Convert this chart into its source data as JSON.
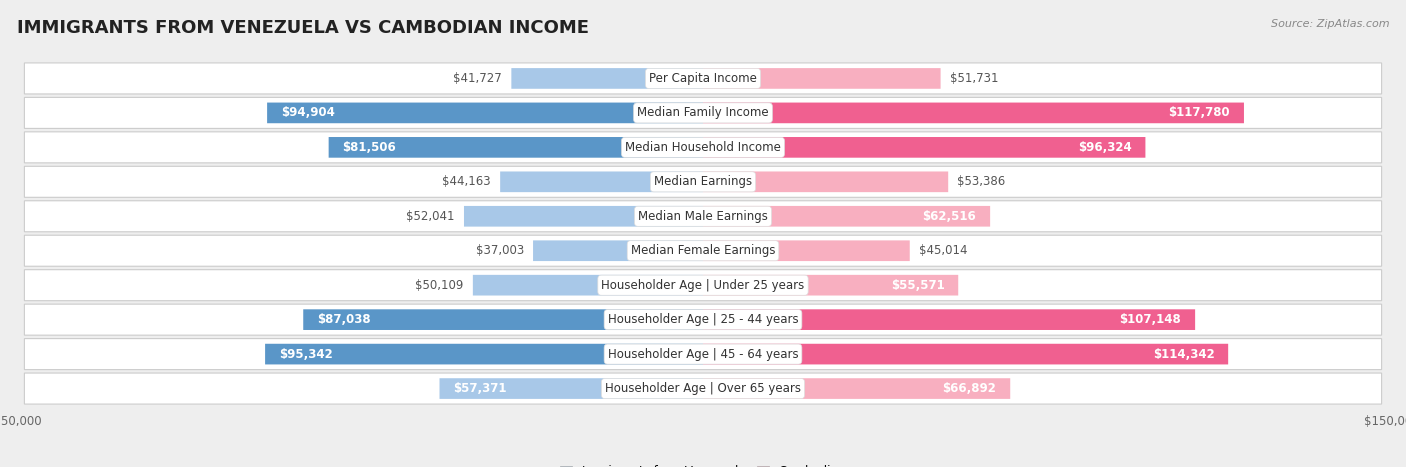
{
  "title": "IMMIGRANTS FROM VENEZUELA VS CAMBODIAN INCOME",
  "source": "Source: ZipAtlas.com",
  "categories": [
    "Per Capita Income",
    "Median Family Income",
    "Median Household Income",
    "Median Earnings",
    "Median Male Earnings",
    "Median Female Earnings",
    "Householder Age | Under 25 years",
    "Householder Age | 25 - 44 years",
    "Householder Age | 45 - 64 years",
    "Householder Age | Over 65 years"
  ],
  "venezuela_values": [
    41727,
    94904,
    81506,
    44163,
    52041,
    37003,
    50109,
    87038,
    95342,
    57371
  ],
  "cambodian_values": [
    51731,
    117780,
    96324,
    53386,
    62516,
    45014,
    55571,
    107148,
    114342,
    66892
  ],
  "venezuela_labels": [
    "$41,727",
    "$94,904",
    "$81,506",
    "$44,163",
    "$52,041",
    "$37,003",
    "$50,109",
    "$87,038",
    "$95,342",
    "$57,371"
  ],
  "cambodian_labels": [
    "$51,731",
    "$117,780",
    "$96,324",
    "$53,386",
    "$62,516",
    "$45,014",
    "$55,571",
    "$107,148",
    "$114,342",
    "$66,892"
  ],
  "venezuela_color_light": "#a8c8e8",
  "venezuela_color_dark": "#5a96c8",
  "cambodian_color_light": "#f8afc0",
  "cambodian_color_dark": "#f06090",
  "max_value": 150000,
  "background_color": "#eeeeee",
  "row_background_color": "#ffffff",
  "title_fontsize": 13,
  "label_fontsize": 8.5,
  "category_fontsize": 8.5,
  "inside_label_threshold_ven": 55000,
  "inside_label_threshold_cam": 55000
}
